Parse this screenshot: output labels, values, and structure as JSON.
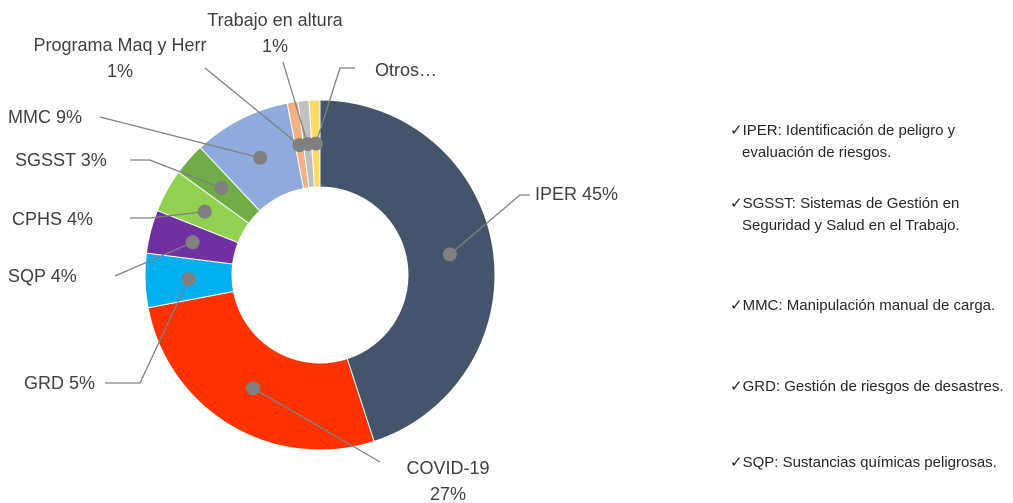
{
  "chart_data": {
    "type": "donut",
    "categories": [
      "IPER",
      "COVID-19",
      "GRD",
      "SQP",
      "CPHS",
      "SGSST",
      "MMC",
      "Programa Maq y Herr",
      "Trabajo en altura",
      "Otros…"
    ],
    "values": [
      45,
      27,
      5,
      4,
      4,
      3,
      9,
      1,
      1,
      1
    ],
    "value_labels": [
      "45%",
      "27%",
      "5%",
      "4%",
      "4%",
      "3%",
      "9%",
      "1%",
      "1%",
      null
    ],
    "colors": [
      "#44546a",
      "#ff3300",
      "#00b0f0",
      "#7030a0",
      "#92d050",
      "#70ad47",
      "#8faadc",
      "#f4b183",
      "#bfbfbf",
      "#ffd966"
    ]
  },
  "notes": [
    "✓IPER: Identificación de peligro y evaluación de riesgos.",
    "✓SGSST: Sistemas de Gestión en Seguridad y Salud en el Trabajo.",
    "✓MMC: Manipulación manual de carga.",
    "✓GRD: Gestión de riesgos de desastres.",
    "✓SQP: Sustancias químicas peligrosas."
  ]
}
